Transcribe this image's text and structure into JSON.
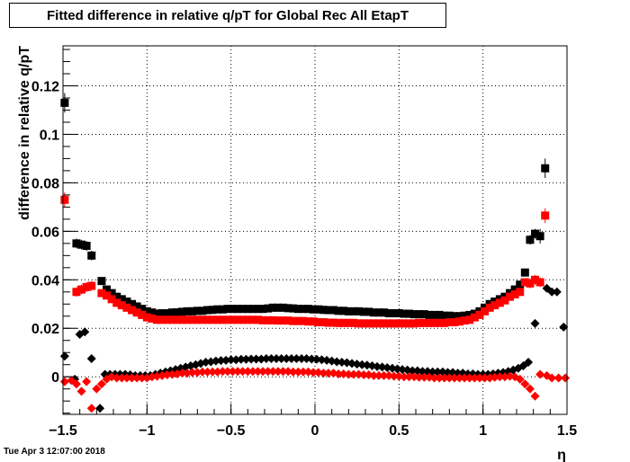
{
  "timestamp": "Tue Apr  3 12:07:00 2018",
  "chart_data": {
    "type": "scatter",
    "title": "Fitted difference in relative q/pT for Global Rec All EtapT",
    "xlabel": "η",
    "ylabel": "difference in relative q/pT",
    "xlim": [
      -1.5,
      1.5
    ],
    "ylim": [
      -0.0155,
      0.1365
    ],
    "xticks": [
      -1.5,
      -1,
      -0.5,
      0,
      0.5,
      1,
      1.5
    ],
    "xtick_labels": [
      "−1.5",
      "−1",
      "−0.5",
      "0",
      "0.5",
      "1",
      "1.5"
    ],
    "yticks": [
      0,
      0.02,
      0.04,
      0.06,
      0.08,
      0.1,
      0.12
    ],
    "ytick_labels": [
      "0",
      "0.02",
      "0.04",
      "0.06",
      "0.08",
      "0.1",
      "0.12"
    ],
    "grid": true,
    "series": [
      {
        "marker": "square",
        "color": "#000000",
        "x": [
          -1.49,
          -1.45,
          -1.42,
          -1.39,
          -1.36,
          -1.33,
          -1.3,
          -1.27,
          -1.24,
          -1.21,
          -1.18,
          -1.15,
          -1.12,
          -1.09,
          -1.06,
          -1.03,
          -1.0,
          -0.97,
          -0.94,
          -0.91,
          -0.88,
          -0.85,
          -0.82,
          -0.79,
          -0.76,
          -0.73,
          -0.7,
          -0.67,
          -0.64,
          -0.61,
          -0.58,
          -0.55,
          -0.52,
          -0.49,
          -0.46,
          -0.43,
          -0.4,
          -0.37,
          -0.34,
          -0.31,
          -0.28,
          -0.25,
          -0.22,
          -0.19,
          -0.16,
          -0.13,
          -0.1,
          -0.07,
          -0.04,
          -0.01,
          0.02,
          0.05,
          0.08,
          0.11,
          0.14,
          0.17,
          0.2,
          0.23,
          0.26,
          0.29,
          0.32,
          0.35,
          0.38,
          0.41,
          0.44,
          0.47,
          0.5,
          0.53,
          0.56,
          0.59,
          0.62,
          0.65,
          0.68,
          0.71,
          0.74,
          0.77,
          0.8,
          0.83,
          0.86,
          0.89,
          0.92,
          0.95,
          0.98,
          1.01,
          1.04,
          1.07,
          1.1,
          1.13,
          1.16,
          1.19,
          1.22,
          1.25,
          1.28,
          1.31,
          1.34,
          1.37,
          1.42,
          1.45,
          1.49
        ],
        "y": [
          0.113,
          null,
          0.055,
          0.0545,
          0.054,
          0.05,
          null,
          0.0395,
          0.036,
          0.0345,
          0.033,
          0.032,
          0.031,
          0.03,
          0.029,
          0.028,
          0.027,
          0.0265,
          0.026,
          0.0262,
          0.0262,
          0.0265,
          0.0266,
          0.0268,
          0.027,
          0.027,
          0.0272,
          0.0272,
          0.0275,
          0.0276,
          0.0278,
          0.0278,
          0.028,
          0.028,
          0.028,
          0.028,
          0.028,
          0.028,
          0.028,
          0.028,
          0.0282,
          0.0285,
          0.0285,
          0.0285,
          0.0283,
          0.0282,
          0.028,
          0.028,
          0.028,
          0.0278,
          0.0278,
          0.0276,
          0.0275,
          0.0275,
          0.0272,
          0.0272,
          0.027,
          0.027,
          0.027,
          0.0268,
          0.0268,
          0.0265,
          0.0265,
          0.0265,
          0.0262,
          0.0262,
          0.0262,
          0.026,
          0.026,
          0.0258,
          0.0258,
          0.0258,
          0.0255,
          0.0255,
          0.0255,
          0.0252,
          0.0252,
          0.025,
          0.025,
          0.0252,
          0.0255,
          0.026,
          0.027,
          0.0285,
          0.03,
          0.031,
          0.032,
          0.033,
          0.0345,
          0.036,
          0.038,
          0.043,
          0.0565,
          0.059,
          0.058,
          0.086,
          null,
          null,
          null
        ],
        "yerr": [
          0.004,
          null,
          0.002,
          0.002,
          0.002,
          0.002,
          null,
          0.0015,
          0.001,
          0.001,
          0.001,
          0.001,
          0.001,
          0.001,
          0.001,
          0.001,
          0.001,
          0.001,
          0.001,
          0.001,
          0.001,
          0.001,
          0.001,
          0.001,
          0.001,
          0.001,
          0.001,
          0.001,
          0.001,
          0.001,
          0.001,
          0.001,
          0.001,
          0.001,
          0.001,
          0.001,
          0.001,
          0.001,
          0.001,
          0.001,
          0.001,
          0.001,
          0.001,
          0.001,
          0.001,
          0.001,
          0.001,
          0.001,
          0.001,
          0.001,
          0.001,
          0.001,
          0.001,
          0.001,
          0.001,
          0.001,
          0.001,
          0.001,
          0.001,
          0.001,
          0.001,
          0.001,
          0.001,
          0.001,
          0.001,
          0.001,
          0.001,
          0.001,
          0.001,
          0.001,
          0.001,
          0.001,
          0.001,
          0.001,
          0.001,
          0.001,
          0.001,
          0.001,
          0.001,
          0.001,
          0.001,
          0.001,
          0.001,
          0.001,
          0.001,
          0.001,
          0.001,
          0.001,
          0.001,
          0.001,
          0.001,
          0.0015,
          0.002,
          0.002,
          0.003,
          0.004,
          null,
          null,
          null
        ]
      },
      {
        "marker": "square",
        "color": "#ff0000",
        "x": [
          -1.49,
          -1.45,
          -1.42,
          -1.39,
          -1.36,
          -1.33,
          -1.3,
          -1.27,
          -1.24,
          -1.21,
          -1.18,
          -1.15,
          -1.12,
          -1.09,
          -1.06,
          -1.03,
          -1.0,
          -0.97,
          -0.94,
          -0.91,
          -0.88,
          -0.85,
          -0.82,
          -0.79,
          -0.76,
          -0.73,
          -0.7,
          -0.67,
          -0.64,
          -0.61,
          -0.58,
          -0.55,
          -0.52,
          -0.49,
          -0.46,
          -0.43,
          -0.4,
          -0.37,
          -0.34,
          -0.31,
          -0.28,
          -0.25,
          -0.22,
          -0.19,
          -0.16,
          -0.13,
          -0.1,
          -0.07,
          -0.04,
          -0.01,
          0.02,
          0.05,
          0.08,
          0.11,
          0.14,
          0.17,
          0.2,
          0.23,
          0.26,
          0.29,
          0.32,
          0.35,
          0.38,
          0.41,
          0.44,
          0.47,
          0.5,
          0.53,
          0.56,
          0.59,
          0.62,
          0.65,
          0.68,
          0.71,
          0.74,
          0.77,
          0.8,
          0.83,
          0.86,
          0.89,
          0.92,
          0.95,
          0.98,
          1.01,
          1.04,
          1.07,
          1.1,
          1.13,
          1.16,
          1.19,
          1.22,
          1.25,
          1.28,
          1.31,
          1.34,
          1.37,
          1.42,
          1.45,
          1.49
        ],
        "y": [
          0.073,
          null,
          0.035,
          0.036,
          0.037,
          0.0375,
          null,
          0.0345,
          0.0335,
          0.032,
          0.0305,
          0.0295,
          0.0285,
          0.0275,
          0.0265,
          0.0255,
          0.0245,
          0.024,
          0.0235,
          0.0235,
          0.0235,
          0.0235,
          0.0235,
          0.0235,
          0.0235,
          0.0235,
          0.0235,
          0.0235,
          0.0235,
          0.0235,
          0.0235,
          0.0235,
          0.0235,
          0.0235,
          0.0235,
          0.0235,
          0.0235,
          0.0235,
          0.0235,
          0.0233,
          0.0233,
          0.0233,
          0.0232,
          0.0232,
          0.0232,
          0.023,
          0.023,
          0.023,
          0.0228,
          0.0228,
          0.0225,
          0.0225,
          0.0223,
          0.0223,
          0.0222,
          0.0222,
          0.0222,
          0.0222,
          0.022,
          0.022,
          0.022,
          0.022,
          0.022,
          0.022,
          0.022,
          0.022,
          0.022,
          0.022,
          0.022,
          0.022,
          0.0222,
          0.0222,
          0.0222,
          0.0222,
          0.0222,
          0.0222,
          0.0225,
          0.0225,
          0.0228,
          0.0232,
          0.0235,
          0.0245,
          0.0255,
          0.027,
          0.0285,
          0.0295,
          0.0305,
          0.0315,
          0.033,
          0.034,
          0.035,
          0.039,
          0.0385,
          0.04,
          0.039,
          0.0665,
          null,
          null,
          null
        ],
        "yerr": [
          0.003,
          null,
          0.002,
          0.002,
          0.002,
          0.002,
          null,
          0.0015,
          0.001,
          0.001,
          0.001,
          0.001,
          0.001,
          0.001,
          0.001,
          0.001,
          0.001,
          0.001,
          0.001,
          0.001,
          0.001,
          0.001,
          0.001,
          0.001,
          0.001,
          0.001,
          0.001,
          0.001,
          0.001,
          0.001,
          0.001,
          0.001,
          0.001,
          0.001,
          0.001,
          0.001,
          0.001,
          0.001,
          0.001,
          0.001,
          0.001,
          0.001,
          0.001,
          0.001,
          0.001,
          0.001,
          0.001,
          0.001,
          0.001,
          0.001,
          0.001,
          0.001,
          0.001,
          0.001,
          0.001,
          0.001,
          0.001,
          0.001,
          0.001,
          0.001,
          0.001,
          0.001,
          0.001,
          0.001,
          0.001,
          0.001,
          0.001,
          0.001,
          0.001,
          0.001,
          0.001,
          0.001,
          0.001,
          0.001,
          0.001,
          0.001,
          0.001,
          0.001,
          0.001,
          0.001,
          0.001,
          0.001,
          0.001,
          0.001,
          0.001,
          0.001,
          0.001,
          0.001,
          0.001,
          0.001,
          0.001,
          0.0015,
          0.002,
          0.002,
          0.002,
          0.003,
          null,
          null,
          null
        ]
      },
      {
        "marker": "diamond",
        "color": "#000000",
        "x": [
          -1.49,
          -1.43,
          -1.4,
          -1.37,
          -1.33,
          -1.28,
          -1.25,
          -1.22,
          -1.19,
          -1.16,
          -1.13,
          -1.1,
          -1.07,
          -1.04,
          -1.01,
          -0.98,
          -0.95,
          -0.92,
          -0.89,
          -0.86,
          -0.83,
          -0.8,
          -0.77,
          -0.74,
          -0.71,
          -0.68,
          -0.65,
          -0.62,
          -0.59,
          -0.56,
          -0.53,
          -0.5,
          -0.47,
          -0.44,
          -0.41,
          -0.38,
          -0.35,
          -0.32,
          -0.29,
          -0.26,
          -0.23,
          -0.2,
          -0.17,
          -0.14,
          -0.11,
          -0.08,
          -0.05,
          -0.02,
          0.01,
          0.04,
          0.07,
          0.1,
          0.13,
          0.16,
          0.19,
          0.22,
          0.25,
          0.28,
          0.31,
          0.34,
          0.37,
          0.4,
          0.43,
          0.46,
          0.49,
          0.52,
          0.55,
          0.58,
          0.61,
          0.64,
          0.67,
          0.7,
          0.73,
          0.76,
          0.79,
          0.82,
          0.85,
          0.88,
          0.91,
          0.94,
          0.97,
          1.0,
          1.03,
          1.06,
          1.09,
          1.12,
          1.15,
          1.18,
          1.21,
          1.24,
          1.27,
          1.31,
          1.38,
          1.41,
          1.44,
          1.48
        ],
        "y": [
          0.0085,
          -0.001,
          0.0175,
          0.0185,
          0.0075,
          -0.013,
          0.001,
          0.001,
          0.001,
          0.001,
          0.001,
          0.0008,
          0.0005,
          0.0005,
          0.0005,
          0.0005,
          0.001,
          0.0015,
          0.002,
          0.0025,
          0.003,
          0.0035,
          0.004,
          0.0045,
          0.005,
          0.0055,
          0.006,
          0.0062,
          0.0065,
          0.0067,
          0.0068,
          0.007,
          0.007,
          0.0072,
          0.0072,
          0.0073,
          0.0073,
          0.0073,
          0.0075,
          0.0075,
          0.0075,
          0.0075,
          0.0075,
          0.0075,
          0.0075,
          0.0075,
          0.0075,
          0.0073,
          0.0072,
          0.007,
          0.0068,
          0.0065,
          0.0062,
          0.006,
          0.0058,
          0.0055,
          0.0052,
          0.005,
          0.0048,
          0.0045,
          0.0042,
          0.004,
          0.0038,
          0.0035,
          0.0032,
          0.003,
          0.0028,
          0.0025,
          0.0025,
          0.0022,
          0.0022,
          0.002,
          0.002,
          0.002,
          0.0018,
          0.0018,
          0.0015,
          0.0015,
          0.0012,
          0.0012,
          0.001,
          0.001,
          0.001,
          0.0012,
          0.0015,
          0.0018,
          0.0022,
          0.0028,
          0.0035,
          0.0045,
          0.006,
          0.022,
          0.0365,
          0.035,
          0.035,
          0.0205
        ]
      },
      {
        "marker": "diamond",
        "color": "#ff0000",
        "x": [
          -1.49,
          -1.45,
          -1.42,
          -1.39,
          -1.36,
          -1.33,
          -1.3,
          -1.27,
          -1.24,
          -1.21,
          -1.18,
          -1.15,
          -1.12,
          -1.09,
          -1.06,
          -1.03,
          -1.0,
          -0.97,
          -0.94,
          -0.91,
          -0.88,
          -0.85,
          -0.82,
          -0.79,
          -0.76,
          -0.73,
          -0.7,
          -0.67,
          -0.64,
          -0.61,
          -0.58,
          -0.55,
          -0.52,
          -0.49,
          -0.46,
          -0.43,
          -0.4,
          -0.37,
          -0.34,
          -0.31,
          -0.28,
          -0.25,
          -0.22,
          -0.19,
          -0.16,
          -0.13,
          -0.1,
          -0.07,
          -0.04,
          -0.01,
          0.02,
          0.05,
          0.08,
          0.11,
          0.14,
          0.17,
          0.2,
          0.23,
          0.26,
          0.29,
          0.32,
          0.35,
          0.38,
          0.41,
          0.44,
          0.47,
          0.5,
          0.53,
          0.56,
          0.59,
          0.62,
          0.65,
          0.68,
          0.71,
          0.74,
          0.77,
          0.8,
          0.83,
          0.86,
          0.89,
          0.92,
          0.95,
          0.98,
          1.01,
          1.04,
          1.07,
          1.1,
          1.13,
          1.16,
          1.19,
          1.22,
          1.25,
          1.28,
          1.31,
          1.34,
          1.38,
          1.41,
          1.45,
          1.49
        ],
        "y": [
          -0.002,
          -0.0015,
          -0.003,
          -0.006,
          -0.002,
          -0.013,
          -0.005,
          -0.003,
          -0.001,
          0.0,
          -0.0005,
          -0.0005,
          -0.0005,
          -0.0005,
          -0.0005,
          -0.0005,
          -0.0005,
          0.0,
          0.0002,
          0.0005,
          0.0008,
          0.001,
          0.0012,
          0.0015,
          0.0015,
          0.0018,
          0.0018,
          0.002,
          0.002,
          0.002,
          0.002,
          0.0022,
          0.0022,
          0.0022,
          0.0022,
          0.0022,
          0.0022,
          0.0022,
          0.0022,
          0.0022,
          0.0022,
          0.0022,
          0.0022,
          0.0022,
          0.0022,
          0.002,
          0.002,
          0.002,
          0.002,
          0.0018,
          0.0018,
          0.0015,
          0.0015,
          0.0015,
          0.0012,
          0.0012,
          0.001,
          0.001,
          0.001,
          0.0008,
          0.0008,
          0.0005,
          0.0005,
          0.0005,
          0.0005,
          0.0002,
          0.0002,
          0.0,
          0.0,
          0.0,
          -0.0002,
          -0.0002,
          -0.0002,
          -0.0005,
          -0.0005,
          -0.0005,
          -0.0005,
          -0.0005,
          -0.0005,
          -0.0005,
          -0.0005,
          -0.0005,
          -0.0005,
          -0.0005,
          -0.0005,
          -0.0002,
          0.0,
          0.0,
          0.0002,
          0.0,
          -0.001,
          -0.003,
          -0.005,
          -0.008,
          0.001,
          0.0005,
          -0.0005,
          -0.0005,
          -0.0005
        ]
      }
    ]
  }
}
